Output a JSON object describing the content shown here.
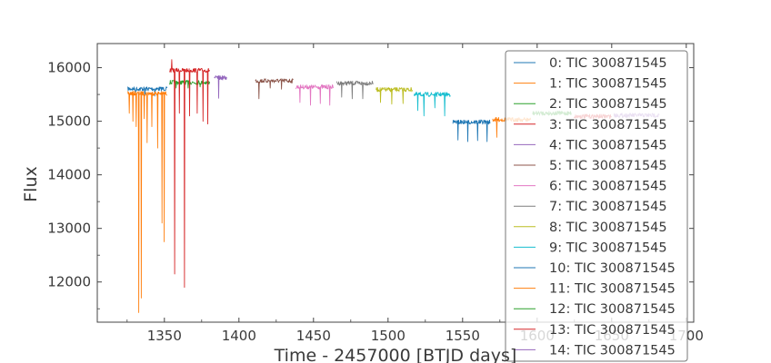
{
  "chart_data": {
    "type": "line",
    "title": "",
    "xlabel": "Time - 2457000 [BTJD days]",
    "ylabel": "Flux",
    "xlim": [
      1305,
      1705
    ],
    "ylim": [
      11250,
      16450
    ],
    "x_ticks": [
      "1350",
      "1400",
      "1450",
      "1500",
      "1550",
      "1600",
      "1650",
      "1700"
    ],
    "y_ticks": [
      "12000",
      "13000",
      "14000",
      "15000",
      "16000"
    ],
    "grid": false,
    "legend_position": "upper-right",
    "series": [
      {
        "name": "0: TIC 300871545",
        "color": "#1f77b4",
        "x_range": [
          1325.5,
          1352.0
        ],
        "baseline": 15605,
        "dips": [
          {
            "x": 1330.5,
            "y": 15500
          },
          {
            "x": 1337.0,
            "y": 15480
          },
          {
            "x": 1343.5,
            "y": 15470
          }
        ]
      },
      {
        "name": "1: TIC 300871545",
        "color": "#ff7f0e",
        "x_range": [
          1325.5,
          1352.0
        ],
        "baseline": 15520,
        "dips": [
          {
            "x": 1326.5,
            "y": 15150
          },
          {
            "x": 1329.0,
            "y": 15000
          },
          {
            "x": 1331.0,
            "y": 14900
          },
          {
            "x": 1332.8,
            "y": 11430
          },
          {
            "x": 1334.5,
            "y": 11700
          },
          {
            "x": 1336.5,
            "y": 15050
          },
          {
            "x": 1338.5,
            "y": 14600
          },
          {
            "x": 1341.5,
            "y": 14900
          },
          {
            "x": 1345.5,
            "y": 14500
          },
          {
            "x": 1348.5,
            "y": 13100
          },
          {
            "x": 1350.0,
            "y": 12750
          }
        ]
      },
      {
        "name": "2: TIC 300871545",
        "color": "#2ca02c",
        "x_range": [
          1353.5,
          1380.5
        ],
        "baseline": 15725,
        "dips": [
          {
            "x": 1358.0,
            "y": 15620
          },
          {
            "x": 1366.0,
            "y": 15620
          },
          {
            "x": 1374.0,
            "y": 15640
          }
        ]
      },
      {
        "name": "3: TIC 300871545",
        "color": "#d62728",
        "x_range": [
          1353.5,
          1380.5
        ],
        "baseline": 15950,
        "dips": [
          {
            "x": 1355.0,
            "y": 16150
          },
          {
            "x": 1357.0,
            "y": 12150
          },
          {
            "x": 1360.0,
            "y": 15150
          },
          {
            "x": 1363.5,
            "y": 11900
          },
          {
            "x": 1367.0,
            "y": 15100
          },
          {
            "x": 1372.0,
            "y": 15150
          },
          {
            "x": 1376.0,
            "y": 15000
          },
          {
            "x": 1379.0,
            "y": 14950
          }
        ]
      },
      {
        "name": "4: TIC 300871545",
        "color": "#9467bd",
        "x_range": [
          1383.5,
          1392.0
        ],
        "baseline": 15810,
        "dips": [
          {
            "x": 1386.5,
            "y": 15430
          }
        ]
      },
      {
        "name": "5: TIC 300871545",
        "color": "#8c564b",
        "x_range": [
          1411.0,
          1436.5
        ],
        "baseline": 15755,
        "dips": [
          {
            "x": 1413.5,
            "y": 15420
          },
          {
            "x": 1421.0,
            "y": 15620
          },
          {
            "x": 1428.5,
            "y": 15600
          }
        ]
      },
      {
        "name": "6: TIC 300871545",
        "color": "#e377c2",
        "x_range": [
          1438.0,
          1463.5
        ],
        "baseline": 15640,
        "dips": [
          {
            "x": 1441.0,
            "y": 15350
          },
          {
            "x": 1448.0,
            "y": 15300
          },
          {
            "x": 1454.5,
            "y": 15330
          },
          {
            "x": 1461.0,
            "y": 15300
          }
        ]
      },
      {
        "name": "7: TIC 300871545",
        "color": "#7f7f7f",
        "x_range": [
          1465.5,
          1490.0
        ],
        "baseline": 15710,
        "dips": [
          {
            "x": 1469.0,
            "y": 15450
          },
          {
            "x": 1476.0,
            "y": 15420
          },
          {
            "x": 1483.0,
            "y": 15420
          }
        ]
      },
      {
        "name": "8: TIC 300871545",
        "color": "#bcbd22",
        "x_range": [
          1492.0,
          1516.5
        ],
        "baseline": 15590,
        "dips": [
          {
            "x": 1495.0,
            "y": 15350
          },
          {
            "x": 1502.5,
            "y": 15320
          },
          {
            "x": 1510.0,
            "y": 15330
          }
        ]
      },
      {
        "name": "9: TIC 300871545",
        "color": "#17becf",
        "x_range": [
          1517.5,
          1542.0
        ],
        "baseline": 15500,
        "dips": [
          {
            "x": 1520.0,
            "y": 15200
          },
          {
            "x": 1524.0,
            "y": 15100
          },
          {
            "x": 1531.5,
            "y": 15250
          },
          {
            "x": 1538.0,
            "y": 15100
          }
        ]
      },
      {
        "name": "10: TIC 300871545",
        "color": "#1f77b4",
        "x_range": [
          1543.5,
          1568.5
        ],
        "baseline": 14985,
        "dips": [
          {
            "x": 1547.0,
            "y": 14650
          },
          {
            "x": 1553.5,
            "y": 14620
          },
          {
            "x": 1560.0,
            "y": 14640
          },
          {
            "x": 1566.5,
            "y": 14620
          }
        ]
      },
      {
        "name": "11: TIC 300871545",
        "color": "#ff7f0e",
        "x_range": [
          1570.0,
          1596.0
        ],
        "baseline": 15030,
        "dips": [
          {
            "x": 1573.0,
            "y": 14700
          }
        ]
      },
      {
        "name": "12: TIC 300871545",
        "color": "#2ca02c",
        "x_range": [
          1597.0,
          1623.0
        ],
        "baseline": 15150,
        "dips": []
      },
      {
        "name": "13: TIC 300871545",
        "color": "#d62728",
        "x_range": [
          1624.5,
          1650.0
        ],
        "baseline": 15090,
        "dips": []
      },
      {
        "name": "14: TIC 300871545",
        "color": "#9467bd",
        "x_range": [
          1651.5,
          1682.0
        ],
        "baseline": 15110,
        "dips": []
      }
    ]
  }
}
